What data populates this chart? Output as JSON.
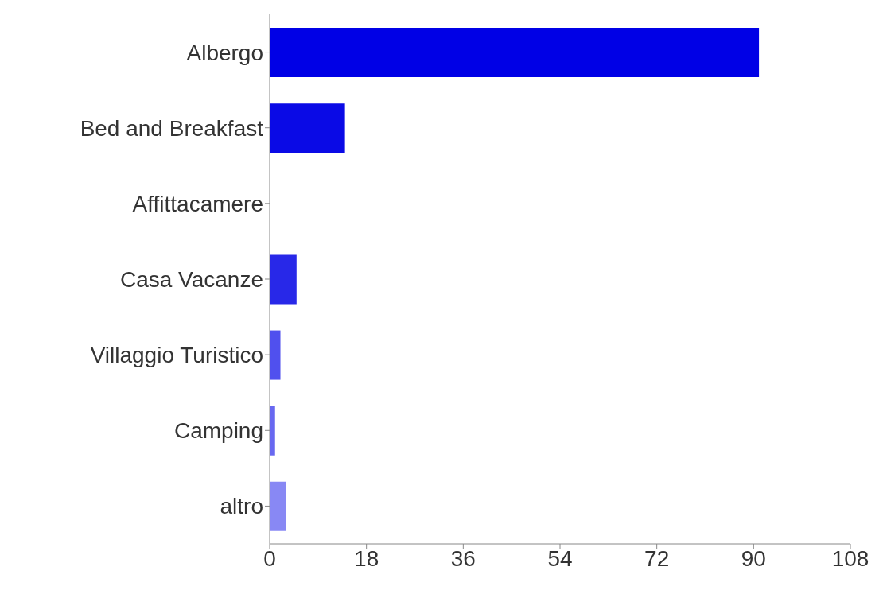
{
  "chart_data": {
    "type": "bar",
    "orientation": "horizontal",
    "categories": [
      "Albergo",
      "Bed and Breakfast",
      "Affittacamere",
      "Casa Vacanze",
      "Villaggio Turistico",
      "Camping",
      "altro"
    ],
    "values": [
      91,
      14,
      0,
      5,
      2,
      1,
      3
    ],
    "colors": [
      "#0000e6",
      "#0a0ae6",
      "#1414e6",
      "#2828e8",
      "#5050ee",
      "#6868f0",
      "#8888f4"
    ],
    "xlim": [
      0,
      108
    ],
    "xticks": [
      0,
      18,
      36,
      54,
      72,
      90,
      108
    ],
    "grid": false,
    "legend": false
  }
}
